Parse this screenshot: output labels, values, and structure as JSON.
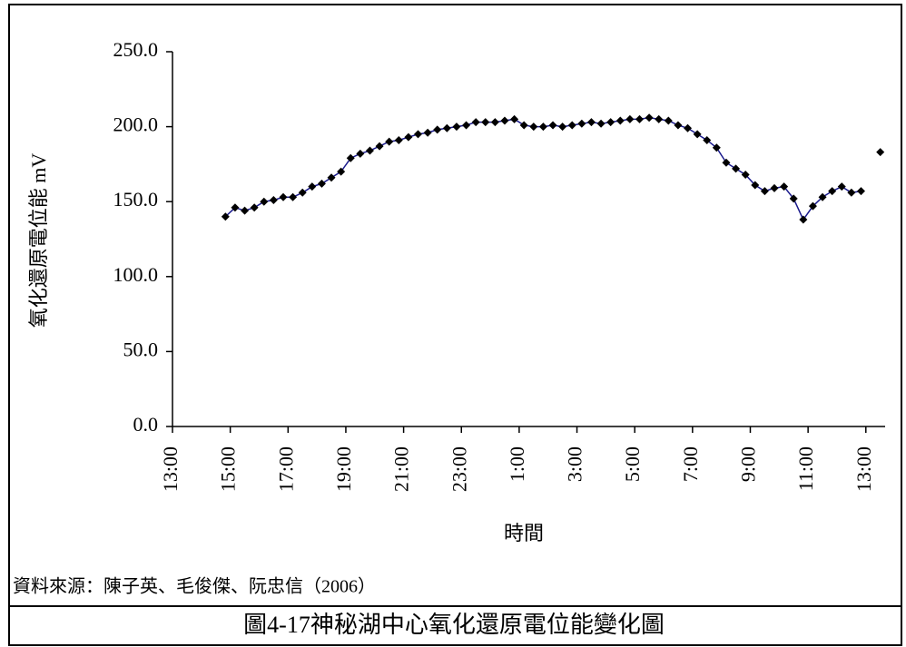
{
  "chart_data": {
    "type": "line",
    "ylabel": "氧化還原電位能 mV",
    "xlabel": "時間",
    "source": "資料來源：陳子英、毛俊傑、阮忠信（2006）",
    "caption": "圖4-17神秘湖中心氧化還原電位能變化圖",
    "x": [
      110,
      130,
      150,
      170,
      190,
      210,
      230,
      250,
      270,
      290,
      310,
      330,
      350,
      370,
      390,
      410,
      430,
      450,
      470,
      490,
      510,
      530,
      550,
      570,
      590,
      610,
      630,
      650,
      670,
      690,
      710,
      730,
      750,
      770,
      790,
      810,
      830,
      850,
      870,
      890,
      910,
      930,
      950,
      970,
      990,
      1010,
      1030,
      1050,
      1070,
      1090,
      1110,
      1130,
      1150,
      1170,
      1190,
      1210,
      1230,
      1250,
      1270,
      1290,
      1310,
      1330,
      1350,
      1370,
      1390,
      1410,
      1430,
      1450,
      1470
    ],
    "series": [
      {
        "color": "#1a1a8c",
        "marker_color": "#000000",
        "values": [
          140,
          146,
          144,
          146,
          150,
          151,
          153,
          153,
          156,
          160,
          162,
          166,
          170,
          179,
          182,
          184,
          187,
          190,
          191,
          193,
          195,
          196,
          198,
          199,
          200,
          201,
          203,
          203,
          203,
          204,
          205,
          201,
          200,
          200,
          201,
          200,
          201,
          202,
          203,
          202,
          203,
          204,
          205,
          205,
          206,
          205,
          204,
          201,
          199,
          195,
          191,
          186,
          176,
          172,
          168,
          161,
          157,
          159,
          160,
          152,
          138,
          147,
          153,
          157,
          160,
          156,
          157,
          null,
          183
        ]
      }
    ],
    "xlim": [
      0,
      1480
    ],
    "xticks": [
      {
        "value": 0,
        "label": "13:00"
      },
      {
        "value": 120,
        "label": "15:00"
      },
      {
        "value": 240,
        "label": "17:00"
      },
      {
        "value": 360,
        "label": "19:00"
      },
      {
        "value": 480,
        "label": "21:00"
      },
      {
        "value": 600,
        "label": "23:00"
      },
      {
        "value": 720,
        "label": "1:00"
      },
      {
        "value": 840,
        "label": "3:00"
      },
      {
        "value": 960,
        "label": "5:00"
      },
      {
        "value": 1080,
        "label": "7:00"
      },
      {
        "value": 1200,
        "label": "9:00"
      },
      {
        "value": 1320,
        "label": "11:00"
      },
      {
        "value": 1440,
        "label": "13:00"
      }
    ],
    "ylim": [
      0,
      250
    ],
    "yticks": [
      {
        "value": 0,
        "label": "0.0"
      },
      {
        "value": 50,
        "label": "50.0"
      },
      {
        "value": 100,
        "label": "100.0"
      },
      {
        "value": 150,
        "label": "150.0"
      },
      {
        "value": 200,
        "label": "200.0"
      },
      {
        "value": 250,
        "label": "250.0"
      }
    ]
  }
}
